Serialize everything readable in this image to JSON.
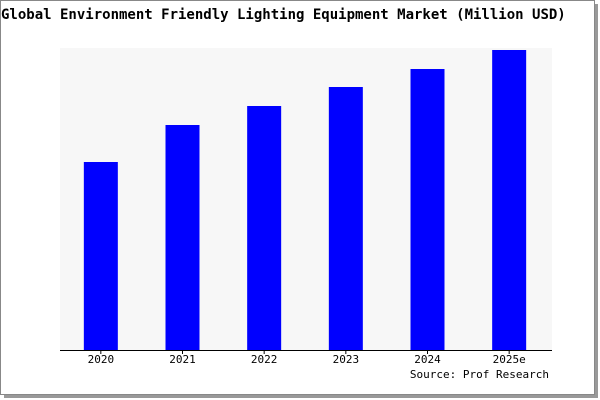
{
  "chart_data": {
    "type": "bar",
    "title": "Global Environment Friendly Lighting Equipment Market (Million USD)",
    "categories": [
      "2020",
      "2021",
      "2022",
      "2023",
      "2024",
      "2025e"
    ],
    "values": [
      188,
      225,
      244,
      263,
      281,
      300
    ],
    "color": "#0000ff",
    "source": "Source: Prof Research"
  }
}
